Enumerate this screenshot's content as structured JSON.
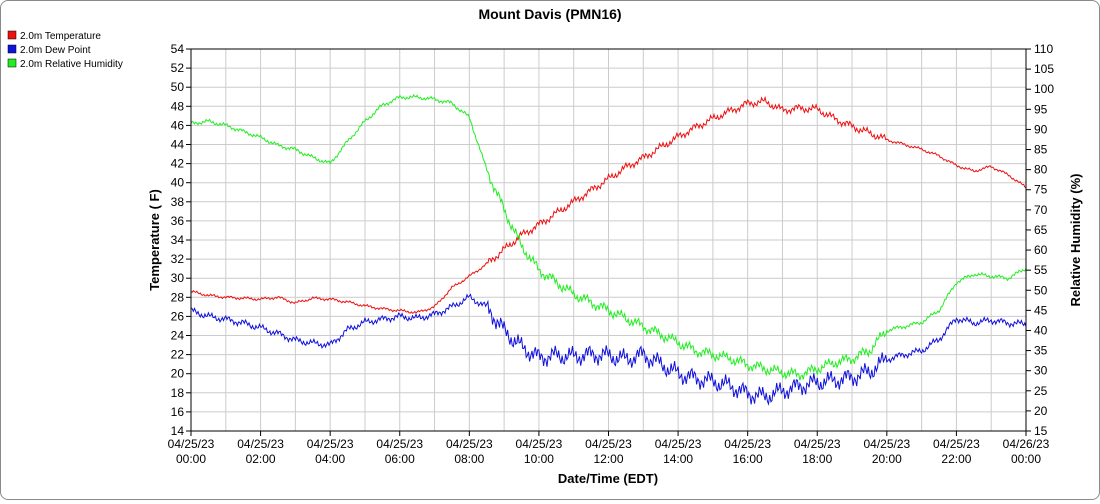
{
  "chart_data": {
    "type": "line",
    "title": "Mount Davis (PMN16)",
    "xlabel": "Date/Time (EDT)",
    "ylabel_left": "Temperature ( F)",
    "ylabel_right": "Relative Humidity (%)",
    "ylim_left": [
      14,
      54
    ],
    "ylim_right": [
      15,
      110
    ],
    "left_ticks": [
      14,
      16,
      18,
      20,
      22,
      24,
      26,
      28,
      30,
      32,
      34,
      36,
      38,
      40,
      42,
      44,
      46,
      48,
      50,
      52,
      54
    ],
    "right_ticks": [
      15,
      20,
      25,
      30,
      35,
      40,
      45,
      50,
      55,
      60,
      65,
      70,
      75,
      80,
      85,
      90,
      95,
      100,
      105,
      110
    ],
    "x_ticks": [
      {
        "date": "04/25/23",
        "time": "00:00"
      },
      {
        "date": "04/25/23",
        "time": "02:00"
      },
      {
        "date": "04/25/23",
        "time": "04:00"
      },
      {
        "date": "04/25/23",
        "time": "06:00"
      },
      {
        "date": "04/25/23",
        "time": "08:00"
      },
      {
        "date": "04/25/23",
        "time": "10:00"
      },
      {
        "date": "04/25/23",
        "time": "12:00"
      },
      {
        "date": "04/25/23",
        "time": "14:00"
      },
      {
        "date": "04/25/23",
        "time": "16:00"
      },
      {
        "date": "04/25/23",
        "time": "18:00"
      },
      {
        "date": "04/25/23",
        "time": "20:00"
      },
      {
        "date": "04/25/23",
        "time": "22:00"
      },
      {
        "date": "04/26/23",
        "time": "00:00"
      }
    ],
    "grid": true,
    "legend_position": "top-left",
    "x_hours": [
      0,
      0.5,
      1,
      1.5,
      2,
      2.5,
      3,
      3.5,
      4,
      4.5,
      5,
      5.5,
      6,
      6.5,
      7,
      7.5,
      8,
      8.5,
      9,
      9.5,
      10,
      10.5,
      11,
      11.5,
      12,
      12.5,
      13,
      13.5,
      14,
      14.5,
      15,
      15.5,
      16,
      16.5,
      17,
      17.5,
      18,
      18.5,
      19,
      19.5,
      20,
      20.5,
      21,
      21.5,
      22,
      22.5,
      23,
      23.5,
      24
    ],
    "series": [
      {
        "name": "2.0m Temperature",
        "axis": "left",
        "color": "#ee1111",
        "values": [
          28.6,
          28.2,
          28.0,
          27.9,
          27.8,
          28.0,
          27.4,
          27.9,
          27.8,
          27.5,
          27.1,
          26.8,
          26.6,
          26.4,
          27.0,
          29.0,
          30.2,
          31.5,
          33.0,
          34.5,
          35.6,
          36.8,
          38.0,
          39.2,
          40.4,
          41.6,
          42.6,
          43.7,
          44.8,
          45.8,
          46.7,
          47.5,
          48.3,
          48.5,
          47.6,
          47.8,
          47.7,
          46.7,
          45.9,
          45.2,
          44.5,
          44.0,
          43.5,
          42.8,
          41.8,
          41.2,
          41.7,
          40.8,
          39.5
        ]
      },
      {
        "name": "2.0m Dew Point",
        "axis": "left",
        "color": "#1111dd",
        "values": [
          26.6,
          26.0,
          25.7,
          25.3,
          24.8,
          24.2,
          23.5,
          23.2,
          23.0,
          24.6,
          25.4,
          25.7,
          26.0,
          25.8,
          26.2,
          27.0,
          28.0,
          27.0,
          24.5,
          22.8,
          21.7,
          21.9,
          21.8,
          22.0,
          21.9,
          21.5,
          22.0,
          21.0,
          20.0,
          19.5,
          19.2,
          18.7,
          17.9,
          17.6,
          18.2,
          18.7,
          19.1,
          19.3,
          19.6,
          20.2,
          21.5,
          22.0,
          22.4,
          23.6,
          25.8,
          25.3,
          25.6,
          25.3,
          25.2
        ]
      },
      {
        "name": "2.0m Relative Humidity",
        "axis": "right",
        "color": "#22ee22",
        "values": [
          91.5,
          92.0,
          91.0,
          89.5,
          88.0,
          86.0,
          85.0,
          83.0,
          81.5,
          87.0,
          92.0,
          96.0,
          98.0,
          98.0,
          97.5,
          96.5,
          93.0,
          80.0,
          70.0,
          61.0,
          55.0,
          52.0,
          49.0,
          47.0,
          45.0,
          43.0,
          41.0,
          39.0,
          37.0,
          35.0,
          34.0,
          33.0,
          31.5,
          30.5,
          29.5,
          29.0,
          30.5,
          32.0,
          33.0,
          35.0,
          40.0,
          41.0,
          42.0,
          45.0,
          52.0,
          54.0,
          53.5,
          53.0,
          55.5
        ]
      }
    ]
  }
}
